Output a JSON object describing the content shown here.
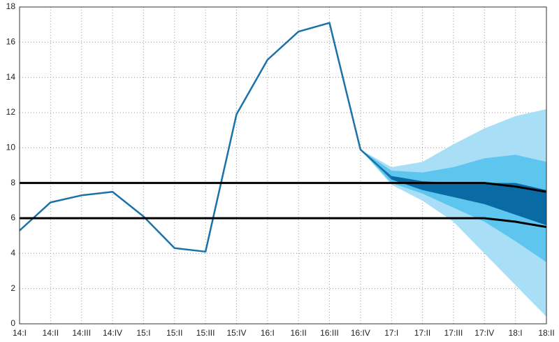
{
  "chart_data": {
    "type": "fan",
    "categories": [
      "14:I",
      "14:II",
      "14:III",
      "14:IV",
      "15:I",
      "15:II",
      "15:III",
      "15:IV",
      "16:I",
      "16:II",
      "16:III",
      "16:IV",
      "17:I",
      "17:II",
      "17:III",
      "17:IV",
      "18:I",
      "18:II"
    ],
    "ylim": [
      0,
      18
    ],
    "yticks": [
      0,
      2,
      4,
      6,
      8,
      10,
      12,
      14,
      16,
      18
    ],
    "grid": true,
    "bands": [
      {
        "color": "#a8def6",
        "lower": [
          null,
          null,
          null,
          null,
          null,
          null,
          null,
          null,
          null,
          null,
          null,
          9.9,
          7.9,
          7.0,
          5.8,
          4.0,
          2.2,
          0.4
        ],
        "upper": [
          null,
          null,
          null,
          null,
          null,
          null,
          null,
          null,
          null,
          null,
          null,
          9.9,
          8.9,
          9.2,
          10.2,
          11.1,
          11.8,
          12.2
        ]
      },
      {
        "color": "#5ec5ee",
        "lower": [
          null,
          null,
          null,
          null,
          null,
          null,
          null,
          null,
          null,
          null,
          null,
          9.9,
          8.0,
          7.4,
          6.6,
          5.8,
          4.7,
          3.5
        ],
        "upper": [
          null,
          null,
          null,
          null,
          null,
          null,
          null,
          null,
          null,
          null,
          null,
          9.9,
          8.7,
          8.6,
          8.9,
          9.4,
          9.6,
          9.2
        ]
      },
      {
        "color": "#0a6aa3",
        "lower": [
          null,
          null,
          null,
          null,
          null,
          null,
          null,
          null,
          null,
          null,
          null,
          9.9,
          8.2,
          7.6,
          7.2,
          6.8,
          6.2,
          5.6
        ],
        "upper": [
          null,
          null,
          null,
          null,
          null,
          null,
          null,
          null,
          null,
          null,
          null,
          9.9,
          8.4,
          8.1,
          8.0,
          8.0,
          8.0,
          7.6
        ]
      }
    ],
    "series": [
      {
        "color": "#1a72a8",
        "width": 2.5,
        "values": [
          5.3,
          6.9,
          7.3,
          7.5,
          6.1,
          4.3,
          4.1,
          11.9,
          15.0,
          16.6,
          17.1,
          9.9,
          8.3,
          null,
          null,
          null,
          null,
          null
        ]
      },
      {
        "color": "#000000",
        "width": 3,
        "values": [
          8,
          8,
          8,
          8,
          8,
          8,
          8,
          8,
          8,
          8,
          8,
          8,
          8,
          8,
          8,
          8,
          7.8,
          7.5
        ]
      },
      {
        "color": "#000000",
        "width": 3,
        "values": [
          6,
          6,
          6,
          6,
          6,
          6,
          6,
          6,
          6,
          6,
          6,
          6,
          6,
          6,
          6,
          6,
          5.8,
          5.5
        ]
      }
    ]
  }
}
